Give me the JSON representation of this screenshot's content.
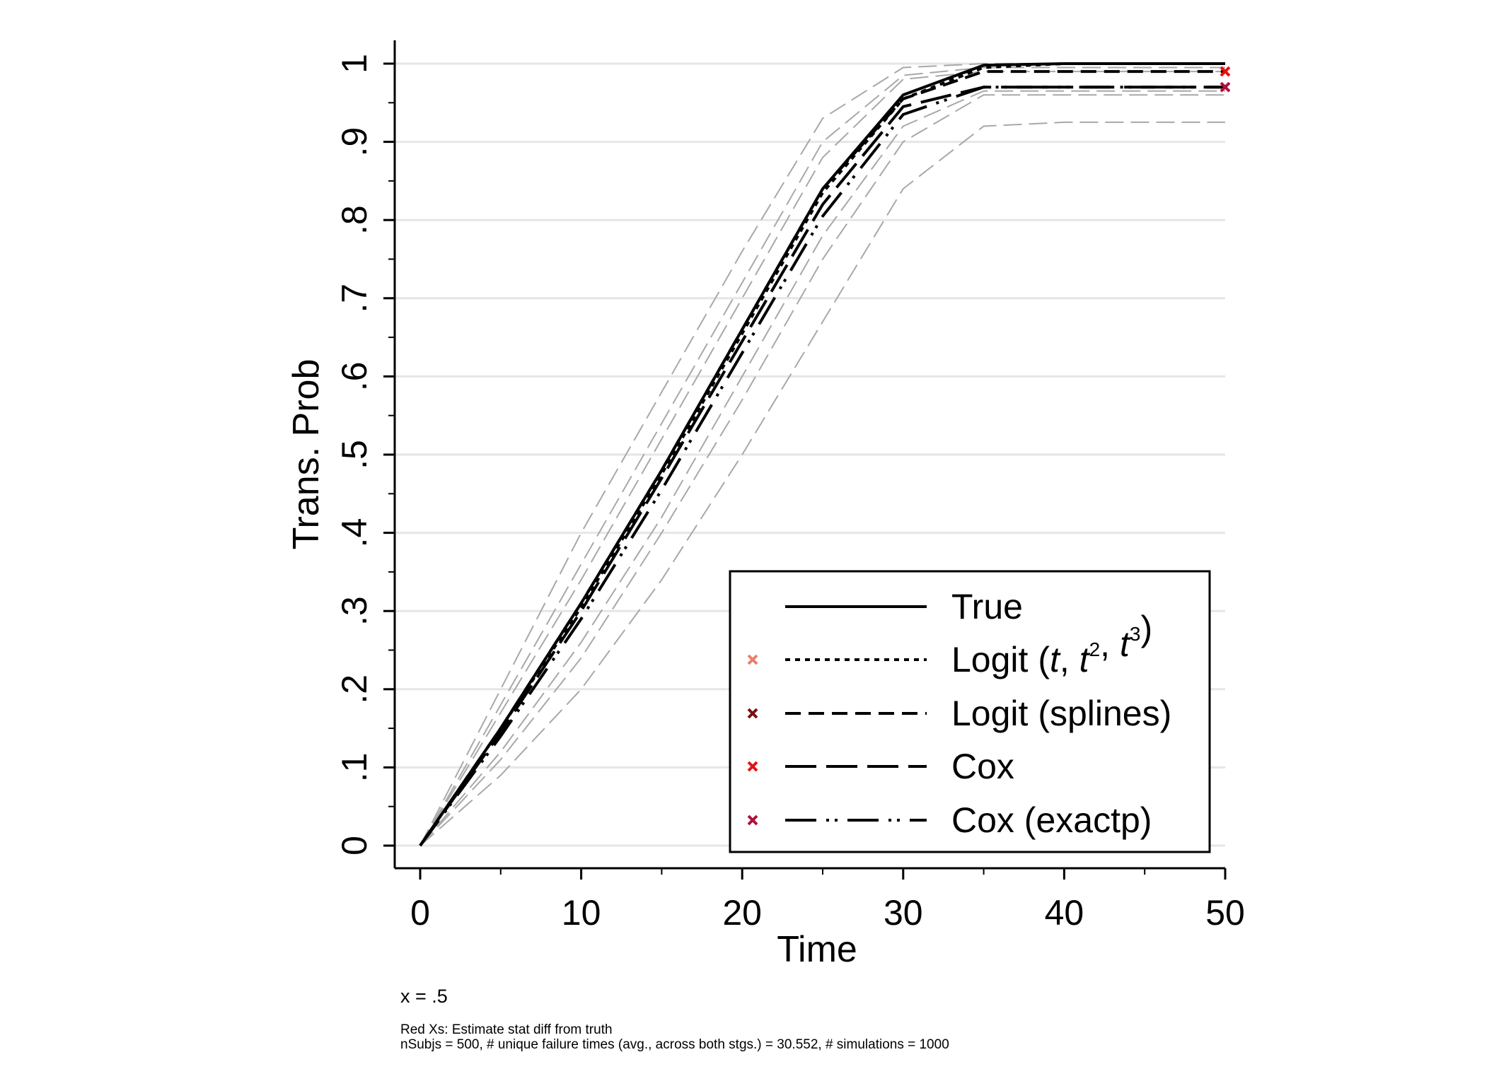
{
  "chart_data": {
    "type": "line",
    "xlabel": "Time",
    "ylabel": "Trans. Prob",
    "xlim": [
      0,
      50
    ],
    "ylim": [
      0,
      1
    ],
    "x_ticks": [
      0,
      10,
      20,
      30,
      40,
      50
    ],
    "x_tick_labels": [
      "0",
      "10",
      "20",
      "30",
      "40",
      "50"
    ],
    "y_ticks": [
      0,
      0.1,
      0.2,
      0.3,
      0.4,
      0.5,
      0.6,
      0.7,
      0.8,
      0.9,
      1
    ],
    "y_tick_labels": [
      "0",
      ".1",
      ".2",
      ".3",
      ".4",
      ".5",
      ".6",
      ".7",
      ".8",
      ".9",
      "1"
    ],
    "grid": "horizontal",
    "legend_position": "bottom-right",
    "series": [
      {
        "name": "True",
        "style": "solid",
        "color": "#000000",
        "x": [
          0,
          5,
          10,
          15,
          20,
          25,
          30,
          35,
          40,
          50
        ],
        "values": [
          0,
          0.15,
          0.31,
          0.48,
          0.66,
          0.84,
          0.96,
          0.998,
          1.0,
          1.0
        ]
      },
      {
        "name": "Logit (t, t², t³)",
        "style": "dotted",
        "color": "#000000",
        "marker_color": "#e8806e",
        "x": [
          0,
          5,
          10,
          15,
          20,
          25,
          30,
          35,
          40,
          50
        ],
        "values": [
          0,
          0.15,
          0.305,
          0.475,
          0.655,
          0.835,
          0.955,
          0.995,
          1.0,
          1.0
        ]
      },
      {
        "name": "Logit (splines)",
        "style": "dashed",
        "color": "#000000",
        "marker_color": "#7a1010",
        "x": [
          0,
          5,
          10,
          15,
          20,
          25,
          30,
          35,
          40,
          50
        ],
        "values": [
          0,
          0.15,
          0.31,
          0.48,
          0.66,
          0.84,
          0.955,
          0.99,
          0.99,
          0.99
        ]
      },
      {
        "name": "Cox",
        "style": "longdash",
        "color": "#000000",
        "marker_color": "#e81010",
        "x": [
          0,
          5,
          10,
          15,
          20,
          25,
          30,
          35,
          40,
          50
        ],
        "values": [
          0,
          0.145,
          0.3,
          0.47,
          0.645,
          0.82,
          0.945,
          0.97,
          0.97,
          0.97
        ]
      },
      {
        "name": "Cox (exactp)",
        "style": "longdashdot",
        "color": "#000000",
        "marker_color": "#b0103c",
        "x": [
          0,
          5,
          10,
          15,
          20,
          25,
          30,
          35,
          40,
          50
        ],
        "values": [
          0,
          0.14,
          0.29,
          0.455,
          0.63,
          0.805,
          0.935,
          0.97,
          0.97,
          0.97
        ]
      }
    ],
    "ci_bands": [
      {
        "x": [
          0,
          5,
          10,
          15,
          20,
          25,
          30,
          35,
          40,
          50
        ],
        "values": [
          0,
          0.2,
          0.4,
          0.58,
          0.76,
          0.93,
          0.995,
          1.0,
          1.0,
          1.0
        ]
      },
      {
        "x": [
          0,
          5,
          10,
          15,
          20,
          25,
          30,
          35,
          40,
          50
        ],
        "values": [
          0,
          0.18,
          0.36,
          0.54,
          0.72,
          0.9,
          0.985,
          0.995,
          0.995,
          0.995
        ]
      },
      {
        "x": [
          0,
          5,
          10,
          15,
          20,
          25,
          30,
          35,
          40,
          50
        ],
        "values": [
          0,
          0.17,
          0.34,
          0.52,
          0.7,
          0.88,
          0.98,
          0.99,
          0.99,
          0.99
        ]
      },
      {
        "x": [
          0,
          5,
          10,
          15,
          20,
          25,
          30,
          35,
          40,
          50
        ],
        "values": [
          0,
          0.12,
          0.26,
          0.42,
          0.6,
          0.78,
          0.92,
          0.965,
          0.965,
          0.965
        ]
      },
      {
        "x": [
          0,
          5,
          10,
          15,
          20,
          25,
          30,
          35,
          40,
          50
        ],
        "values": [
          0,
          0.11,
          0.24,
          0.4,
          0.57,
          0.75,
          0.9,
          0.96,
          0.96,
          0.96
        ]
      },
      {
        "x": [
          0,
          5,
          10,
          15,
          20,
          25,
          30,
          35,
          40,
          50
        ],
        "values": [
          0,
          0.09,
          0.2,
          0.34,
          0.5,
          0.67,
          0.84,
          0.92,
          0.925,
          0.925
        ]
      }
    ],
    "annotations": [
      {
        "kind": "red-x",
        "x": 50,
        "y": 0.99,
        "color": "#e81010"
      },
      {
        "kind": "red-x",
        "x": 50,
        "y": 0.97,
        "color": "#b0103c"
      }
    ]
  },
  "notes": {
    "x_value": "x = .5",
    "line1": "Red Xs: Estimate stat diff from truth",
    "line2": "nSubjs = 500, # unique failure times (avg., across both stgs.) = 30.552, # simulations = 1000"
  }
}
